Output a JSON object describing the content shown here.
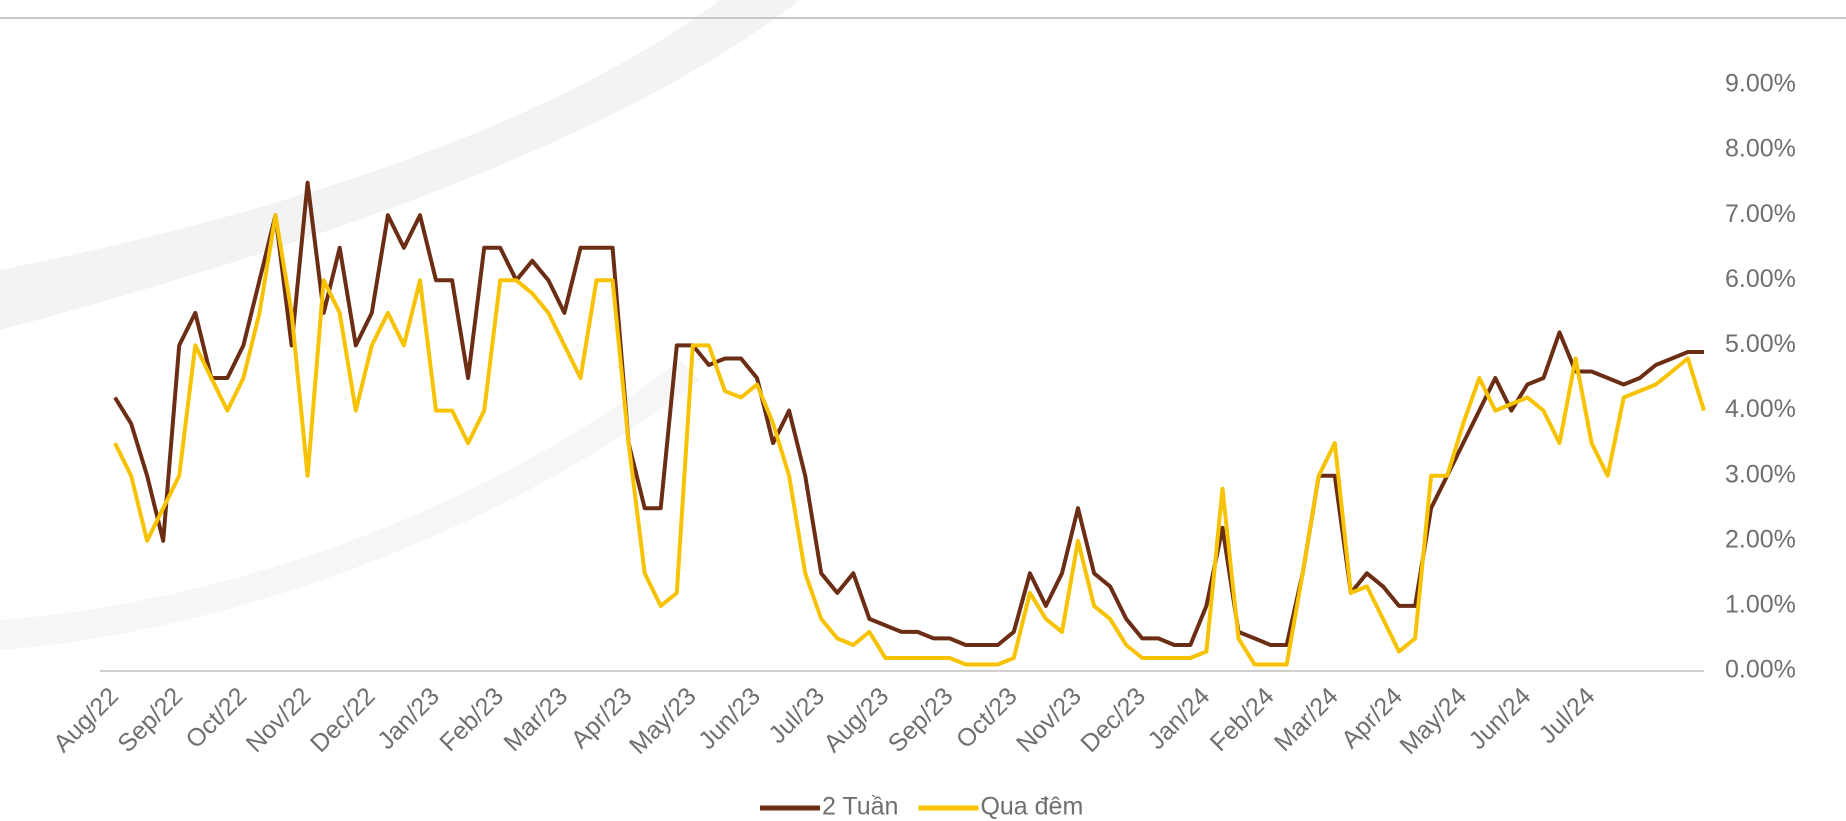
{
  "chart_data": {
    "type": "line",
    "categories": [
      "Aug/22",
      null,
      null,
      null,
      "Sep/22",
      null,
      null,
      null,
      "Oct/22",
      null,
      null,
      null,
      "Nov/22",
      null,
      null,
      null,
      "Dec/22",
      null,
      null,
      null,
      "Jan/23",
      null,
      null,
      null,
      "Feb/23",
      null,
      null,
      null,
      "Mar/23",
      null,
      null,
      null,
      "Apr/23",
      null,
      null,
      null,
      "May/23",
      null,
      null,
      null,
      "Jun/23",
      null,
      null,
      null,
      "Jul/23",
      null,
      null,
      null,
      "Aug/23",
      null,
      null,
      null,
      "Sep/23",
      null,
      null,
      null,
      "Oct/23",
      null,
      null,
      null,
      "Nov/23",
      null,
      null,
      null,
      "Dec/23",
      null,
      null,
      null,
      "Jan/24",
      null,
      null,
      null,
      "Feb/24",
      null,
      null,
      null,
      "Mar/24",
      null,
      null,
      null,
      "Apr/24",
      null,
      null,
      null,
      "May/24",
      null,
      null,
      null,
      "Jun/24",
      null,
      null,
      null,
      "Jul/24",
      null,
      null,
      null,
      null,
      null,
      null,
      null
    ],
    "series": [
      {
        "name": "2 Tuần",
        "color": "#6b2d14",
        "values": [
          4.2,
          3.8,
          3.0,
          2.0,
          5.0,
          5.5,
          4.5,
          4.5,
          5.0,
          6.0,
          7.0,
          5.0,
          7.5,
          5.5,
          6.5,
          5.0,
          5.5,
          7.0,
          6.5,
          7.0,
          6.0,
          6.0,
          4.5,
          6.5,
          6.5,
          6.0,
          6.3,
          6.0,
          5.5,
          6.5,
          6.5,
          6.5,
          3.5,
          2.5,
          2.5,
          5.0,
          5.0,
          4.7,
          4.8,
          4.8,
          4.5,
          3.5,
          4.0,
          3.0,
          1.5,
          1.2,
          1.5,
          0.8,
          0.7,
          0.6,
          0.6,
          0.5,
          0.5,
          0.4,
          0.4,
          0.4,
          0.6,
          1.5,
          1.0,
          1.5,
          2.5,
          1.5,
          1.3,
          0.8,
          0.5,
          0.5,
          0.4,
          0.4,
          1.0,
          2.2,
          0.6,
          0.5,
          0.4,
          0.4,
          1.5,
          3.0,
          3.0,
          1.2,
          1.5,
          1.3,
          1.0,
          1.0,
          2.5,
          3.0,
          3.5,
          4.0,
          4.5,
          4.0,
          4.4,
          4.5,
          5.2,
          4.6,
          4.6,
          4.5,
          4.4,
          4.5,
          4.7,
          4.8,
          4.9,
          4.9
        ]
      },
      {
        "name": "Qua đêm",
        "color": "#f7c200",
        "values": [
          3.5,
          3.0,
          2.0,
          2.5,
          3.0,
          5.0,
          4.5,
          4.0,
          4.5,
          5.5,
          7.0,
          5.5,
          3.0,
          6.0,
          5.5,
          4.0,
          5.0,
          5.5,
          5.0,
          6.0,
          4.0,
          4.0,
          3.5,
          4.0,
          6.0,
          6.0,
          5.8,
          5.5,
          5.0,
          4.5,
          6.0,
          6.0,
          3.5,
          1.5,
          1.0,
          1.2,
          5.0,
          5.0,
          4.3,
          4.2,
          4.4,
          3.8,
          3.0,
          1.5,
          0.8,
          0.5,
          0.4,
          0.6,
          0.2,
          0.2,
          0.2,
          0.2,
          0.2,
          0.1,
          0.1,
          0.1,
          0.2,
          1.2,
          0.8,
          0.6,
          2.0,
          1.0,
          0.8,
          0.4,
          0.2,
          0.2,
          0.2,
          0.2,
          0.3,
          2.8,
          0.5,
          0.1,
          0.1,
          0.1,
          1.5,
          3.0,
          3.5,
          1.2,
          1.3,
          0.8,
          0.3,
          0.5,
          3.0,
          3.0,
          3.8,
          4.5,
          4.0,
          4.1,
          4.2,
          4.0,
          3.5,
          4.8,
          3.5,
          3.0,
          4.2,
          4.3,
          4.4,
          4.6,
          4.8,
          4.0
        ]
      }
    ],
    "ylim": [
      0,
      9
    ],
    "yticks": [
      {
        "value": 0,
        "label": "0.00%"
      },
      {
        "value": 1,
        "label": "1.00%"
      },
      {
        "value": 2,
        "label": "2.00%"
      },
      {
        "value": 3,
        "label": "3.00%"
      },
      {
        "value": 4,
        "label": "4.00%"
      },
      {
        "value": 5,
        "label": "5.00%"
      },
      {
        "value": 6,
        "label": "6.00%"
      },
      {
        "value": 7,
        "label": "7.00%"
      },
      {
        "value": 8,
        "label": "8.00%"
      },
      {
        "value": 9,
        "label": "9.00%"
      }
    ],
    "legend": "bottom"
  }
}
